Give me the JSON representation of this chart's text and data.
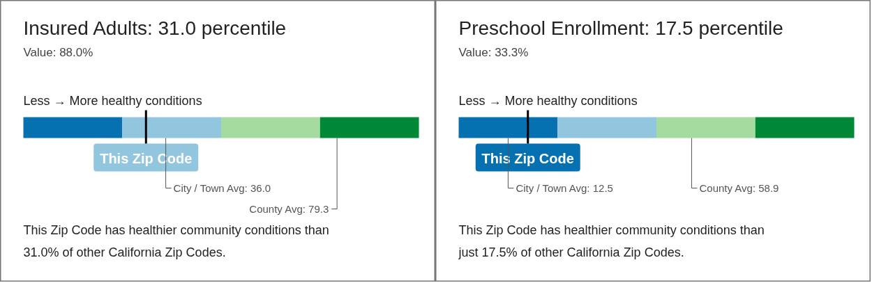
{
  "chart_data": [
    {
      "type": "bar",
      "orientation": "horizontal",
      "stacked": true,
      "title": "Insured Adults: 31.0 percentile",
      "subtitle": "Value: 88.0%",
      "categories": [
        null
      ],
      "xlim": [
        0,
        100
      ],
      "tick_labels": false,
      "series": [
        {
          "color": "#0571b0",
          "values": [
            25
          ]
        },
        {
          "color": "#92c5de",
          "values": [
            25
          ]
        },
        {
          "color": "#a6dba0",
          "values": [
            25
          ]
        },
        {
          "color": "#008837",
          "values": [
            25
          ]
        }
      ],
      "ref_lines": [
        {
          "axis": "x",
          "value": 31.0,
          "label": "This Zip Code",
          "color": "#000000"
        },
        {
          "axis": "x",
          "value": 36.0,
          "label": "City / Town Avg: 36.0",
          "color": "#555555"
        },
        {
          "axis": "x",
          "value": 79.3,
          "label": "County Avg: 79.3",
          "color": "#555555"
        }
      ],
      "annotations": [
        "Less → More healthy conditions",
        "This Zip Code has healthier community conditions than 31.0% of other California Zip Codes."
      ]
    },
    {
      "type": "bar",
      "orientation": "horizontal",
      "stacked": true,
      "title": "Preschool Enrollment: 17.5 percentile",
      "subtitle": "Value: 33.3%",
      "categories": [
        null
      ],
      "xlim": [
        0,
        100
      ],
      "tick_labels": false,
      "series": [
        {
          "color": "#0571b0",
          "values": [
            25
          ]
        },
        {
          "color": "#92c5de",
          "values": [
            25
          ]
        },
        {
          "color": "#a6dba0",
          "values": [
            25
          ]
        },
        {
          "color": "#008837",
          "values": [
            25
          ]
        }
      ],
      "ref_lines": [
        {
          "axis": "x",
          "value": 17.5,
          "label": "This Zip Code",
          "color": "#000000"
        },
        {
          "axis": "x",
          "value": 12.5,
          "label": "City / Town Avg: 12.5",
          "color": "#555555"
        },
        {
          "axis": "x",
          "value": 58.9,
          "label": "County Avg: 58.9",
          "color": "#555555"
        }
      ],
      "annotations": [
        "Less → More healthy conditions",
        "This Zip Code has healthier community conditions than just 17.5% of other California Zip Codes."
      ]
    }
  ]
}
